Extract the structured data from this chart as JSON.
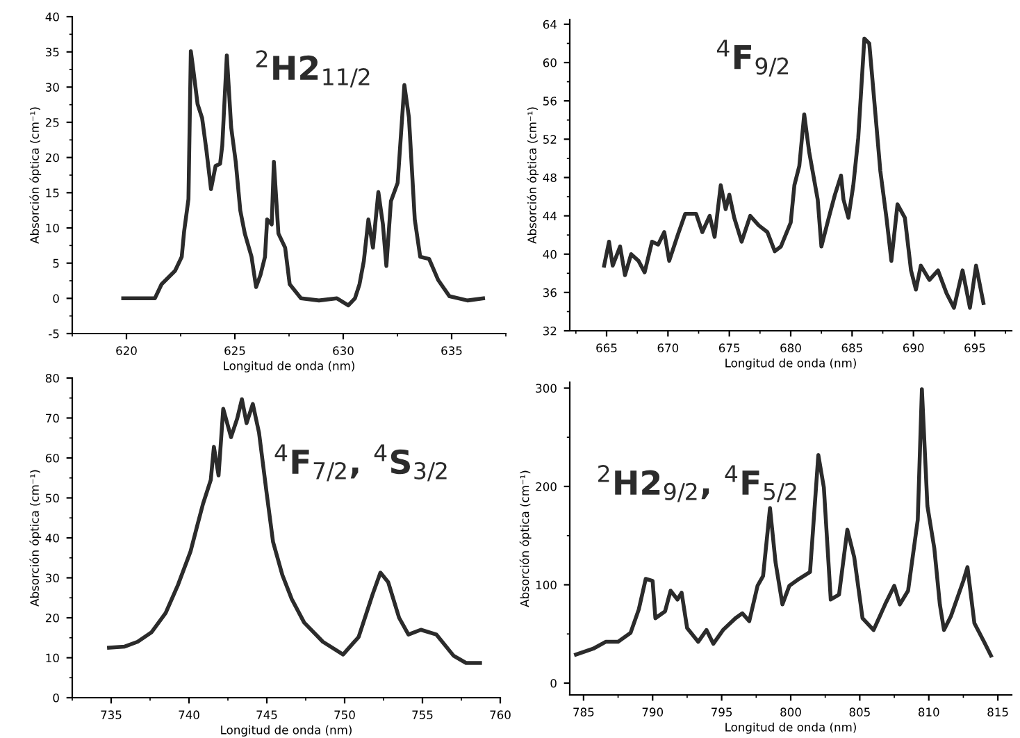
{
  "chart_data": [
    {
      "type": "line",
      "xlabel": "Longitud de onda (nm)",
      "ylabel": "Absorción óptica (cm⁻¹)",
      "annotations": [
        "$^{2}$H2$_{11/2}$"
      ],
      "color": "#2b2b2b",
      "xlim": [
        617.5,
        637.5
      ],
      "ylim": [
        -5,
        40
      ],
      "xticks": [
        620,
        625,
        630,
        635
      ],
      "yticks": [
        -5,
        0,
        5,
        10,
        15,
        20,
        25,
        30,
        35,
        40
      ],
      "x": [
        619.85,
        621.31,
        621.62,
        622.24,
        622.55,
        622.66,
        622.86,
        622.97,
        623.07,
        623.28,
        623.49,
        623.69,
        623.9,
        624.11,
        624.32,
        624.42,
        624.63,
        624.83,
        625.04,
        625.25,
        625.46,
        625.77,
        625.98,
        626.18,
        626.39,
        626.49,
        626.7,
        626.8,
        627.01,
        627.32,
        627.53,
        628.05,
        628.88,
        629.71,
        630.23,
        630.54,
        630.75,
        630.95,
        631.16,
        631.37,
        631.62,
        631.83,
        631.99,
        632.2,
        632.51,
        632.82,
        633.03,
        633.3,
        633.55,
        633.96,
        634.38,
        634.9,
        635.73,
        636.45
      ],
      "values": [
        0,
        0,
        2.0,
        3.9,
        5.9,
        9.5,
        14.1,
        35.1,
        32.8,
        27.6,
        25.6,
        21,
        15.5,
        18.8,
        19.1,
        21.7,
        34.5,
        24.3,
        19.4,
        12.5,
        9.2,
        5.9,
        1.6,
        3.3,
        5.9,
        11.2,
        10.5,
        19.4,
        9.2,
        7.2,
        2,
        0,
        -0.3,
        0,
        -1,
        0,
        2,
        5.3,
        11.2,
        7.2,
        15.1,
        10.5,
        4.6,
        13.8,
        16.4,
        30.3,
        25.7,
        11.2,
        5.9,
        5.6,
        2.6,
        0.3,
        -0.3,
        0
      ]
    },
    {
      "type": "line",
      "xlabel": "Longitud de onda (nm)",
      "ylabel": "Absorción óptica (cm⁻¹)",
      "annotations": [
        "$^{4}$F$_{9/2}$"
      ],
      "color": "#2b2b2b",
      "xlim": [
        662,
        698
      ],
      "ylim": [
        32,
        64.5
      ],
      "xticks": [
        665,
        670,
        675,
        680,
        685,
        690,
        695
      ],
      "yticks": [
        32,
        36,
        40,
        44,
        48,
        52,
        56,
        60,
        64
      ],
      "x": [
        664.8,
        665.2,
        665.5,
        666.1,
        666.5,
        667.0,
        667.6,
        668.1,
        668.7,
        669.2,
        669.7,
        670.1,
        670.8,
        671.4,
        672.3,
        672.8,
        673.4,
        673.8,
        674.3,
        674.7,
        675.0,
        675.4,
        676.0,
        676.7,
        677.4,
        678.1,
        678.7,
        679.2,
        680.0,
        680.3,
        680.7,
        681.1,
        681.5,
        682.2,
        682.5,
        683.1,
        683.6,
        684.1,
        684.3,
        684.7,
        685.1,
        685.5,
        686.0,
        686.4,
        686.7,
        687.3,
        687.8,
        688.2,
        688.7,
        689.3,
        689.8,
        690.2,
        690.6,
        691.3,
        692.0,
        692.7,
        693.3,
        694.0,
        694.6,
        695.1,
        695.7
      ],
      "values": [
        38.8,
        41.3,
        38.8,
        40.8,
        37.8,
        40,
        39.3,
        38.1,
        41.3,
        41,
        42.3,
        39.3,
        42,
        44.2,
        44.2,
        42.3,
        44,
        41.8,
        47.2,
        44.7,
        46.2,
        43.8,
        41.3,
        44,
        43,
        42.3,
        40.3,
        40.8,
        43.3,
        47.2,
        49.2,
        54.6,
        50.7,
        45.7,
        40.8,
        43.8,
        46.2,
        48.2,
        45.7,
        43.8,
        47.2,
        52.1,
        62.5,
        62,
        57.6,
        48.7,
        43.8,
        39.3,
        45.2,
        43.8,
        38.3,
        36.3,
        38.8,
        37.3,
        38.3,
        35.9,
        34.4,
        38.3,
        34.4,
        38.8,
        34.9
      ]
    },
    {
      "type": "line",
      "xlabel": "Longitud de onda (nm)",
      "ylabel": "Absorción óptica (cm⁻¹)",
      "annotations": [
        "$^{4}$F$_{7/2}$, $^{4}$S$_{3/2}$"
      ],
      "color": "#2b2b2b",
      "xlim": [
        732.5,
        760
      ],
      "ylim": [
        0,
        80
      ],
      "xticks": [
        735,
        740,
        745,
        750,
        755,
        760
      ],
      "yticks": [
        0,
        10,
        20,
        30,
        40,
        50,
        60,
        70,
        80
      ],
      "x": [
        734.86,
        735.87,
        736.7,
        737.6,
        738.5,
        739.3,
        740.1,
        740.5,
        740.9,
        741.4,
        741.6,
        741.9,
        742.2,
        742.7,
        743.1,
        743.4,
        743.7,
        744.1,
        744.5,
        745.0,
        745.4,
        746.0,
        746.6,
        747.4,
        748.6,
        749.9,
        750.9,
        751.8,
        752.3,
        752.8,
        753.5,
        754.1,
        754.9,
        755.9,
        757.0,
        757.8,
        758.7
      ],
      "values": [
        12.5,
        12.8,
        14,
        16.4,
        21.2,
        28.3,
        36.6,
        42.6,
        48.5,
        54.5,
        62.8,
        55.6,
        72.3,
        65.2,
        69.9,
        74.7,
        68.7,
        73.5,
        66.3,
        50.9,
        39,
        30.7,
        24.7,
        18.8,
        14,
        10.8,
        15.2,
        25.9,
        31.3,
        28.9,
        20,
        15.8,
        17,
        15.8,
        10.5,
        8.7,
        8.7
      ]
    },
    {
      "type": "line",
      "xlabel": "Longitud de onda (nm)",
      "ylabel": "Absorción óptica (cm⁻¹)",
      "annotations": [
        "$^{2}$H2$_{9/2}$, $^{4}$F$_{5/2}$"
      ],
      "color": "#2b2b2b",
      "xlim": [
        784,
        816
      ],
      "ylim": [
        -12,
        306
      ],
      "xticks": [
        785,
        790,
        795,
        800,
        805,
        810,
        815
      ],
      "yticks": [
        0,
        100,
        200,
        300
      ],
      "x": [
        784.45,
        785.7,
        786.6,
        787.5,
        788.4,
        789.0,
        789.5,
        790.0,
        790.2,
        790.9,
        791.3,
        791.8,
        792.1,
        792.5,
        793.3,
        793.9,
        794.4,
        795.1,
        796.0,
        796.5,
        797.0,
        797.6,
        798.0,
        798.5,
        798.9,
        799.4,
        799.9,
        800.6,
        801.4,
        802.0,
        802.4,
        802.9,
        803.5,
        804.1,
        804.6,
        805.2,
        806.0,
        806.9,
        807.5,
        807.9,
        808.5,
        809.2,
        809.5,
        809.9,
        810.4,
        810.8,
        811.1,
        811.6,
        812.5,
        812.8,
        813.3,
        814.0,
        814.5
      ],
      "values": [
        29,
        35,
        42,
        42,
        51,
        75,
        106,
        104,
        66,
        73,
        94,
        85,
        92,
        56,
        42,
        54,
        40,
        54,
        66,
        71,
        63,
        99,
        109,
        178,
        123,
        80,
        99,
        106,
        113,
        232,
        199,
        85,
        90,
        156,
        128,
        66,
        54,
        82,
        99,
        80,
        94,
        166,
        299,
        180,
        137,
        80,
        54,
        68,
        104,
        118,
        61,
        42,
        28
      ]
    }
  ]
}
